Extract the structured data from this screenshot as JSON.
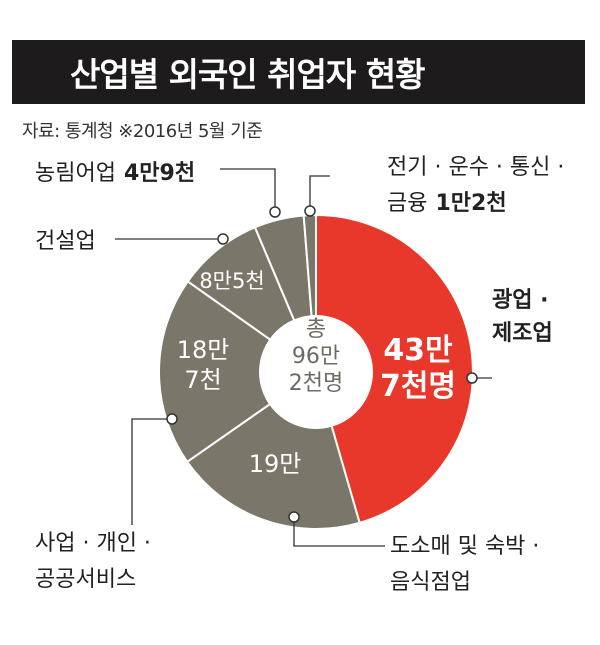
{
  "title": "산업별 외국인 취업자 현황",
  "source": "자료: 통계청  ※2016년 5월 기준",
  "colors": {
    "title_bg": "#1e1b1c",
    "highlight": "#e8382b",
    "segment": "#7a776a",
    "divider": "#ffffff"
  },
  "chart_data": {
    "type": "pie",
    "style": "donut",
    "unit": "명",
    "total": {
      "value": 962000,
      "label": [
        "총",
        "96만",
        "2천명"
      ]
    },
    "slices": [
      {
        "name": "광업·제조업",
        "value": 437000,
        "value_label": [
          "43만",
          "7천명"
        ],
        "category_label": [
          "광업 ·",
          "제조업"
        ],
        "highlight": true
      },
      {
        "name": "도소매 및 숙박·음식점업",
        "value": 190000,
        "value_label": [
          "19만"
        ],
        "category_label": [
          "도소매 및 숙박 ·",
          "음식점업"
        ]
      },
      {
        "name": "사업·개인·공공서비스",
        "value": 187000,
        "value_label": [
          "18만",
          "7천"
        ],
        "category_label": [
          "사업 · 개인 ·",
          "공공서비스"
        ]
      },
      {
        "name": "건설업",
        "value": 85000,
        "value_label": [
          "8만5천"
        ],
        "category_label": [
          "건설업"
        ]
      },
      {
        "name": "농림어업",
        "value": 49000,
        "value_label": [],
        "category_label": [
          "농림어업"
        ],
        "category_value": "4만9천"
      },
      {
        "name": "전기·운수·통신·금융",
        "value": 12000,
        "value_label": [],
        "category_label": [
          "전기 · 운수 · 통신 ·",
          "금융"
        ],
        "category_value": "1만2천"
      }
    ]
  }
}
